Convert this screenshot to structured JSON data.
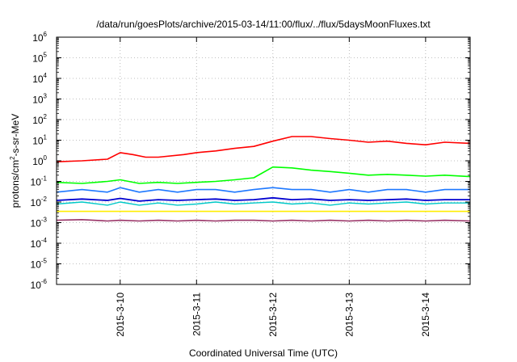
{
  "chart_data": {
    "type": "line",
    "title": "/data/run/goesPlots/archive/2015-03-14/11:00/flux/../flux/5daysMoonFluxes.txt",
    "xlabel": "Coordinated Universal Time (UTC)",
    "ylabel": "protons/cm²-s-sr-MeV",
    "ylabel_parts": {
      "prefix": "protons/cm",
      "sup": "2",
      "suffix": "-s-sr-MeV"
    },
    "x_scale": "time",
    "xlim": [
      "2015-03-09T04:00",
      "2015-03-14T14:00"
    ],
    "x_ticks": [
      {
        "value": "2015-03-10T00:00",
        "label": "2015-3-10"
      },
      {
        "value": "2015-03-11T00:00",
        "label": "2015-3-11"
      },
      {
        "value": "2015-03-12T00:00",
        "label": "2015-3-12"
      },
      {
        "value": "2015-03-13T00:00",
        "label": "2015-3-13"
      },
      {
        "value": "2015-03-14T00:00",
        "label": "2015-3-14"
      }
    ],
    "y_scale": "log",
    "ylim": [
      1e-06,
      1000000.0
    ],
    "y_ticks": [
      {
        "value": 1e-06,
        "base": "10",
        "exp": "-6"
      },
      {
        "value": 1e-05,
        "base": "10",
        "exp": "-5"
      },
      {
        "value": 0.0001,
        "base": "10",
        "exp": "-4"
      },
      {
        "value": 0.001,
        "base": "10",
        "exp": "-3"
      },
      {
        "value": 0.01,
        "base": "10",
        "exp": "-2"
      },
      {
        "value": 0.1,
        "base": "10",
        "exp": "-1"
      },
      {
        "value": 1,
        "base": "10",
        "exp": "0"
      },
      {
        "value": 10,
        "base": "10",
        "exp": "1"
      },
      {
        "value": 100,
        "base": "10",
        "exp": "2"
      },
      {
        "value": 1000,
        "base": "10",
        "exp": "3"
      },
      {
        "value": 10000,
        "base": "10",
        "exp": "4"
      },
      {
        "value": 100000,
        "base": "10",
        "exp": "5"
      },
      {
        "value": 1000000,
        "base": "10",
        "exp": "6"
      }
    ],
    "grid": true,
    "legend": "none",
    "series": [
      {
        "color": "#ff0000",
        "width": 1.6,
        "points": [
          [
            "2015-03-09T04:00",
            0.9
          ],
          [
            "2015-03-09T12:00",
            1.0
          ],
          [
            "2015-03-09T20:00",
            1.2
          ],
          [
            "2015-03-10T00:00",
            2.5
          ],
          [
            "2015-03-10T04:00",
            2.0
          ],
          [
            "2015-03-10T08:00",
            1.5
          ],
          [
            "2015-03-10T12:00",
            1.5
          ],
          [
            "2015-03-10T20:00",
            2.0
          ],
          [
            "2015-03-11T00:00",
            2.5
          ],
          [
            "2015-03-11T06:00",
            3.0
          ],
          [
            "2015-03-11T12:00",
            4.0
          ],
          [
            "2015-03-11T18:00",
            5.0
          ],
          [
            "2015-03-12T00:00",
            9.0
          ],
          [
            "2015-03-12T06:00",
            15.0
          ],
          [
            "2015-03-12T12:00",
            15.0
          ],
          [
            "2015-03-12T18:00",
            12.0
          ],
          [
            "2015-03-13T00:00",
            10.0
          ],
          [
            "2015-03-13T06:00",
            8.0
          ],
          [
            "2015-03-13T12:00",
            9.0
          ],
          [
            "2015-03-13T18:00",
            7.0
          ],
          [
            "2015-03-14T00:00",
            6.0
          ],
          [
            "2015-03-14T06:00",
            8.0
          ],
          [
            "2015-03-14T14:00",
            7.0
          ]
        ]
      },
      {
        "color": "#00ff00",
        "width": 1.6,
        "points": [
          [
            "2015-03-09T04:00",
            0.09
          ],
          [
            "2015-03-09T12:00",
            0.08
          ],
          [
            "2015-03-09T20:00",
            0.1
          ],
          [
            "2015-03-10T00:00",
            0.12
          ],
          [
            "2015-03-10T06:00",
            0.08
          ],
          [
            "2015-03-10T12:00",
            0.09
          ],
          [
            "2015-03-10T18:00",
            0.08
          ],
          [
            "2015-03-11T00:00",
            0.09
          ],
          [
            "2015-03-11T06:00",
            0.1
          ],
          [
            "2015-03-11T12:00",
            0.12
          ],
          [
            "2015-03-11T18:00",
            0.15
          ],
          [
            "2015-03-12T00:00",
            0.5
          ],
          [
            "2015-03-12T06:00",
            0.45
          ],
          [
            "2015-03-12T12:00",
            0.35
          ],
          [
            "2015-03-12T18:00",
            0.3
          ],
          [
            "2015-03-13T00:00",
            0.25
          ],
          [
            "2015-03-13T06:00",
            0.2
          ],
          [
            "2015-03-13T12:00",
            0.22
          ],
          [
            "2015-03-13T18:00",
            0.2
          ],
          [
            "2015-03-14T00:00",
            0.18
          ],
          [
            "2015-03-14T06:00",
            0.2
          ],
          [
            "2015-03-14T14:00",
            0.17
          ]
        ]
      },
      {
        "color": "#1e78ff",
        "width": 1.6,
        "points": [
          [
            "2015-03-09T04:00",
            0.03
          ],
          [
            "2015-03-09T12:00",
            0.04
          ],
          [
            "2015-03-09T20:00",
            0.03
          ],
          [
            "2015-03-10T00:00",
            0.05
          ],
          [
            "2015-03-10T06:00",
            0.03
          ],
          [
            "2015-03-10T12:00",
            0.04
          ],
          [
            "2015-03-10T18:00",
            0.03
          ],
          [
            "2015-03-11T00:00",
            0.04
          ],
          [
            "2015-03-11T06:00",
            0.04
          ],
          [
            "2015-03-11T12:00",
            0.03
          ],
          [
            "2015-03-11T18:00",
            0.04
          ],
          [
            "2015-03-12T00:00",
            0.05
          ],
          [
            "2015-03-12T06:00",
            0.04
          ],
          [
            "2015-03-12T12:00",
            0.04
          ],
          [
            "2015-03-12T18:00",
            0.03
          ],
          [
            "2015-03-13T00:00",
            0.04
          ],
          [
            "2015-03-13T06:00",
            0.03
          ],
          [
            "2015-03-13T12:00",
            0.04
          ],
          [
            "2015-03-13T18:00",
            0.04
          ],
          [
            "2015-03-14T00:00",
            0.03
          ],
          [
            "2015-03-14T06:00",
            0.04
          ],
          [
            "2015-03-14T14:00",
            0.04
          ]
        ]
      },
      {
        "color": "#00c8c8",
        "width": 1.4,
        "points": [
          [
            "2015-03-09T04:00",
            0.008
          ],
          [
            "2015-03-09T12:00",
            0.01
          ],
          [
            "2015-03-09T20:00",
            0.007
          ],
          [
            "2015-03-10T00:00",
            0.01
          ],
          [
            "2015-03-10T06:00",
            0.007
          ],
          [
            "2015-03-10T12:00",
            0.009
          ],
          [
            "2015-03-10T18:00",
            0.007
          ],
          [
            "2015-03-11T00:00",
            0.008
          ],
          [
            "2015-03-11T06:00",
            0.01
          ],
          [
            "2015-03-11T12:00",
            0.008
          ],
          [
            "2015-03-11T18:00",
            0.009
          ],
          [
            "2015-03-12T00:00",
            0.01
          ],
          [
            "2015-03-12T06:00",
            0.008
          ],
          [
            "2015-03-12T12:00",
            0.009
          ],
          [
            "2015-03-12T18:00",
            0.007
          ],
          [
            "2015-03-13T00:00",
            0.009
          ],
          [
            "2015-03-13T06:00",
            0.008
          ],
          [
            "2015-03-13T12:00",
            0.009
          ],
          [
            "2015-03-13T18:00",
            0.01
          ],
          [
            "2015-03-14T00:00",
            0.008
          ],
          [
            "2015-03-14T06:00",
            0.009
          ],
          [
            "2015-03-14T14:00",
            0.009
          ]
        ]
      },
      {
        "color": "#0000d0",
        "width": 1.8,
        "points": [
          [
            "2015-03-09T04:00",
            0.012
          ],
          [
            "2015-03-09T12:00",
            0.014
          ],
          [
            "2015-03-09T20:00",
            0.012
          ],
          [
            "2015-03-10T00:00",
            0.015
          ],
          [
            "2015-03-10T06:00",
            0.011
          ],
          [
            "2015-03-10T12:00",
            0.013
          ],
          [
            "2015-03-10T18:00",
            0.012
          ],
          [
            "2015-03-11T00:00",
            0.013
          ],
          [
            "2015-03-11T06:00",
            0.014
          ],
          [
            "2015-03-11T12:00",
            0.012
          ],
          [
            "2015-03-11T18:00",
            0.013
          ],
          [
            "2015-03-12T00:00",
            0.016
          ],
          [
            "2015-03-12T06:00",
            0.013
          ],
          [
            "2015-03-12T12:00",
            0.014
          ],
          [
            "2015-03-12T18:00",
            0.012
          ],
          [
            "2015-03-13T00:00",
            0.013
          ],
          [
            "2015-03-13T06:00",
            0.012
          ],
          [
            "2015-03-13T12:00",
            0.013
          ],
          [
            "2015-03-13T18:00",
            0.014
          ],
          [
            "2015-03-14T00:00",
            0.012
          ],
          [
            "2015-03-14T06:00",
            0.013
          ],
          [
            "2015-03-14T14:00",
            0.013
          ]
        ]
      },
      {
        "color": "#ffee00",
        "width": 1.6,
        "points": [
          [
            "2015-03-09T04:00",
            0.0035
          ],
          [
            "2015-03-09T12:00",
            0.0035
          ],
          [
            "2015-03-10T00:00",
            0.0035
          ],
          [
            "2015-03-10T12:00",
            0.0035
          ],
          [
            "2015-03-11T00:00",
            0.0035
          ],
          [
            "2015-03-11T12:00",
            0.0035
          ],
          [
            "2015-03-12T00:00",
            0.0035
          ],
          [
            "2015-03-12T12:00",
            0.0035
          ],
          [
            "2015-03-13T00:00",
            0.0035
          ],
          [
            "2015-03-13T12:00",
            0.0035
          ],
          [
            "2015-03-14T00:00",
            0.0035
          ],
          [
            "2015-03-14T14:00",
            0.0035
          ]
        ]
      },
      {
        "color": "#993366",
        "width": 1.6,
        "points": [
          [
            "2015-03-09T04:00",
            0.0013
          ],
          [
            "2015-03-09T12:00",
            0.0014
          ],
          [
            "2015-03-09T20:00",
            0.0012
          ],
          [
            "2015-03-10T00:00",
            0.0013
          ],
          [
            "2015-03-10T06:00",
            0.0012
          ],
          [
            "2015-03-10T12:00",
            0.0013
          ],
          [
            "2015-03-10T18:00",
            0.0012
          ],
          [
            "2015-03-11T00:00",
            0.0013
          ],
          [
            "2015-03-11T06:00",
            0.0012
          ],
          [
            "2015-03-11T12:00",
            0.0013
          ],
          [
            "2015-03-11T18:00",
            0.0013
          ],
          [
            "2015-03-12T00:00",
            0.0012
          ],
          [
            "2015-03-12T06:00",
            0.0013
          ],
          [
            "2015-03-12T12:00",
            0.0012
          ],
          [
            "2015-03-12T18:00",
            0.0013
          ],
          [
            "2015-03-13T00:00",
            0.0012
          ],
          [
            "2015-03-13T06:00",
            0.0013
          ],
          [
            "2015-03-13T12:00",
            0.0012
          ],
          [
            "2015-03-13T18:00",
            0.0013
          ],
          [
            "2015-03-14T00:00",
            0.0012
          ],
          [
            "2015-03-14T06:00",
            0.0013
          ],
          [
            "2015-03-14T14:00",
            0.0012
          ]
        ]
      }
    ]
  }
}
